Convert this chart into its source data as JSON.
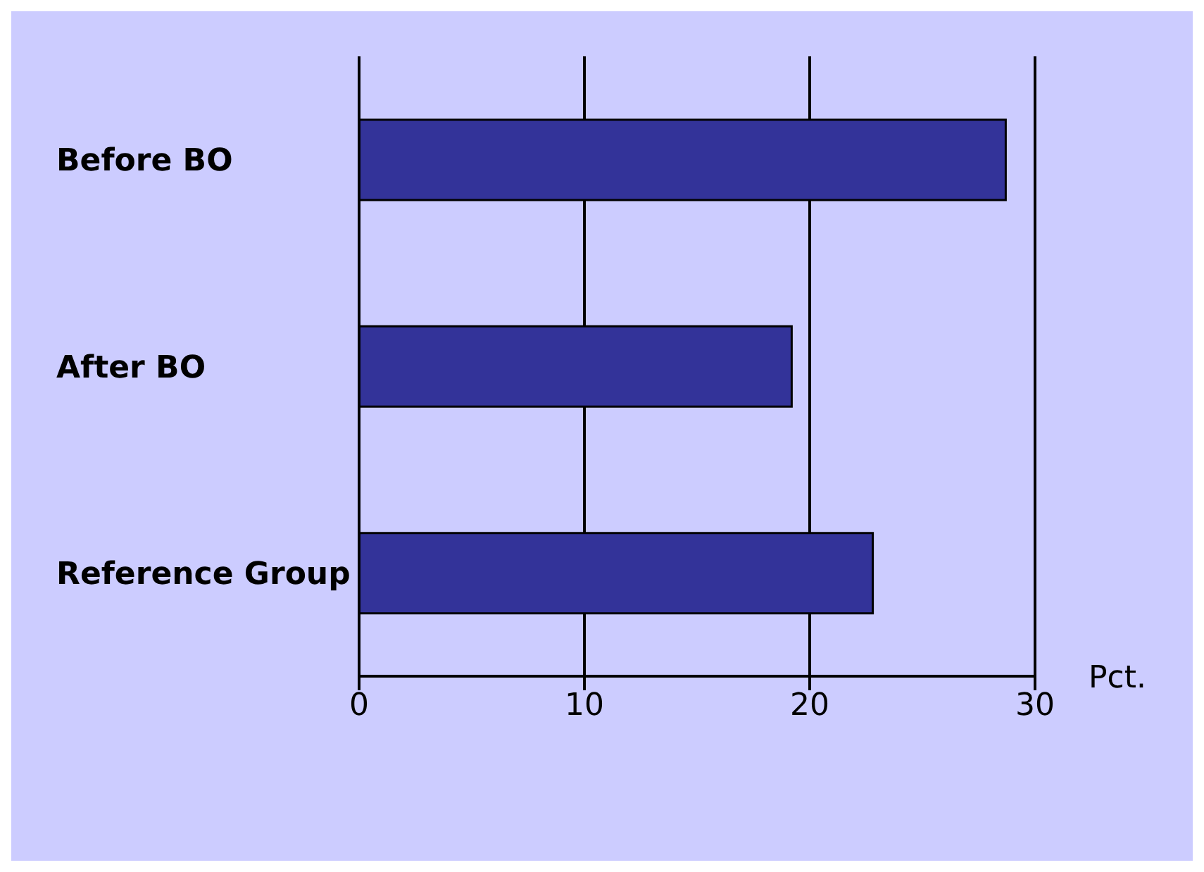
{
  "chart_data": {
    "type": "bar",
    "orientation": "horizontal",
    "categories": [
      "Before BO",
      "After BO",
      "Reference Group"
    ],
    "values": [
      28.7,
      19.2,
      22.8
    ],
    "color": "#333399",
    "xlabel": "Pct.",
    "xlim": [
      0,
      30
    ],
    "xticks": [
      0,
      10,
      20,
      30
    ],
    "grid": "x"
  }
}
